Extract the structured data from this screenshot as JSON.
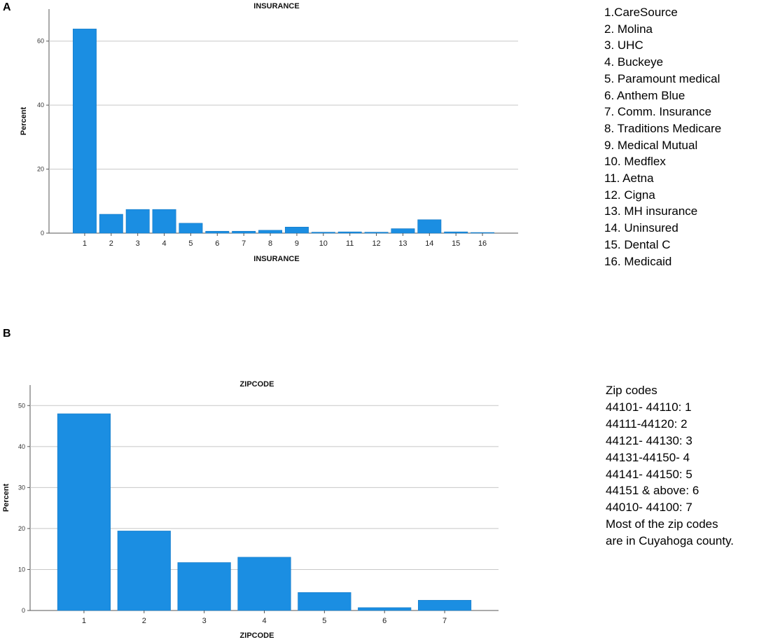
{
  "panels": [
    {
      "letter": "A"
    },
    {
      "letter": "B"
    }
  ],
  "legend_a": {
    "items": [
      "1.CareSource",
      "2. Molina",
      "3. UHC",
      "4. Buckeye",
      "5. Paramount medical",
      "6. Anthem Blue",
      "7. Comm. Insurance",
      "8. Traditions Medicare",
      "9. Medical Mutual",
      "10. Medflex",
      "11. Aetna",
      "12. Cigna",
      "13. MH insurance",
      "14. Uninsured",
      "15. Dental C",
      "16. Medicaid"
    ]
  },
  "legend_b": {
    "lines": [
      "Zip codes",
      "44101- 44110:  1",
      "44111-44120:  2",
      "44121- 44130: 3",
      "44131-44150-  4",
      "44141- 44150: 5",
      "44151 & above:  6",
      "44010- 44100: 7",
      "Most of the zip codes",
      "are in Cuyahoga county."
    ]
  },
  "chart_data": [
    {
      "type": "bar",
      "title": "INSURANCE",
      "xlabel": "INSURANCE",
      "ylabel": "Percent",
      "categories": [
        "1",
        "2",
        "3",
        "4",
        "5",
        "6",
        "7",
        "8",
        "9",
        "10",
        "11",
        "12",
        "13",
        "14",
        "15",
        "16"
      ],
      "values": [
        63.8,
        5.9,
        7.4,
        7.4,
        3.1,
        0.6,
        0.6,
        0.9,
        1.9,
        0.3,
        0.4,
        0.3,
        1.4,
        4.2,
        0.4,
        0.2
      ],
      "ylim": [
        0,
        70
      ],
      "yticks": [
        0,
        20,
        40,
        60
      ],
      "grid": true,
      "bar_color": "#1b8ee2"
    },
    {
      "type": "bar",
      "title": "ZIPCODE",
      "xlabel": "ZIPCODE",
      "ylabel": "Percent",
      "categories": [
        "1",
        "2",
        "3",
        "4",
        "5",
        "6",
        "7"
      ],
      "values": [
        48,
        19.4,
        11.7,
        13,
        4.4,
        0.7,
        2.5
      ],
      "ylim": [
        0,
        55
      ],
      "yticks": [
        0,
        10,
        20,
        30,
        40,
        50
      ],
      "grid": true,
      "bar_color": "#1b8ee2"
    }
  ]
}
